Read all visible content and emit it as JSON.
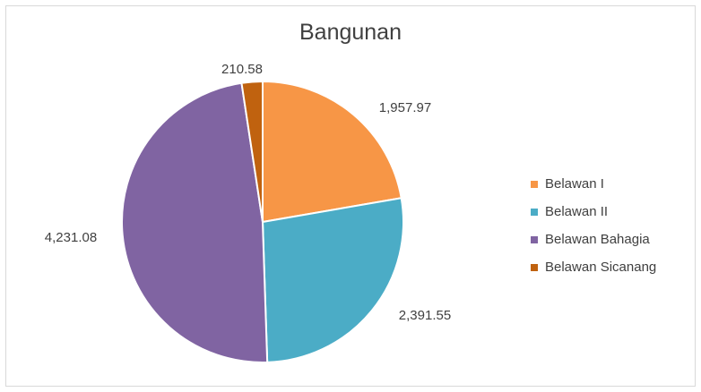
{
  "chart_data": {
    "type": "pie",
    "title": "Bangunan",
    "categories": [
      "Belawan I",
      "Belawan II",
      "Belawan Bahagia",
      "Belawan Sicanang"
    ],
    "values": [
      1957.97,
      2391.55,
      4231.08,
      210.58
    ],
    "data_labels": [
      "1,957.97",
      "2,391.55",
      "4,231.08",
      "210.58"
    ],
    "colors": [
      "#f79646",
      "#4bacc6",
      "#8064a2",
      "#c0620f"
    ],
    "start_angle_deg": 0,
    "direction": "clockwise",
    "legend_position": "right"
  }
}
